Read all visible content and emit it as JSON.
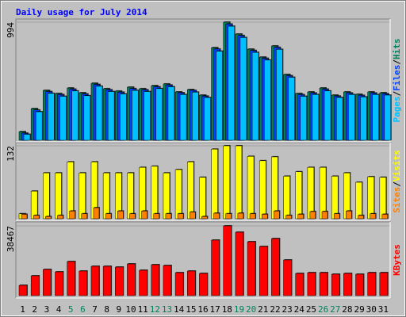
{
  "title": "Daily usage for July 2014",
  "separator": "/",
  "chart_data": [
    {
      "type": "bar",
      "ylim": [
        0,
        994
      ],
      "yticks": [
        994
      ],
      "series": [
        {
          "name": "Pages",
          "color": "#00C0FF",
          "values": [
            50,
            240,
            395,
            370,
            415,
            375,
            455,
            410,
            390,
            420,
            410,
            435,
            450,
            385,
            405,
            360,
            750,
            960,
            865,
            740,
            675,
            765,
            530,
            370,
            385,
            415,
            360,
            385,
            365,
            385,
            380
          ]
        },
        {
          "name": "Files",
          "color": "#0040FF",
          "values": [
            60,
            255,
            410,
            385,
            430,
            390,
            470,
            425,
            405,
            435,
            425,
            450,
            465,
            400,
            420,
            372,
            768,
            978,
            882,
            756,
            690,
            782,
            544,
            384,
            398,
            430,
            372,
            398,
            378,
            398,
            392
          ]
        },
        {
          "name": "Hits",
          "color": "#00805C",
          "values": [
            73,
            267,
            420,
            394,
            440,
            400,
            480,
            434,
            414,
            447,
            434,
            460,
            474,
            407,
            427,
            380,
            780,
            994,
            894,
            767,
            700,
            794,
            554,
            394,
            407,
            440,
            380,
            407,
            387,
            407,
            400
          ]
        }
      ]
    },
    {
      "type": "bar",
      "ylim": [
        0,
        132
      ],
      "yticks": [
        132
      ],
      "series": [
        {
          "name": "Sites",
          "color": "#FF8000",
          "values": [
            8,
            6,
            4,
            6,
            14,
            9,
            20,
            9,
            14,
            9,
            14,
            9,
            9,
            9,
            12,
            4,
            10,
            9,
            10,
            9,
            8,
            14,
            6,
            8,
            13,
            13,
            9,
            14,
            6,
            9,
            8
          ]
        },
        {
          "name": "Visits",
          "color": "#FFFF00",
          "values": [
            9,
            50,
            83,
            83,
            103,
            83,
            103,
            83,
            83,
            83,
            93,
            95,
            83,
            89,
            103,
            75,
            126,
            132,
            132,
            113,
            105,
            112,
            77,
            85,
            93,
            93,
            77,
            83,
            66,
            76,
            75
          ]
        }
      ]
    },
    {
      "type": "bar",
      "ylim": [
        0,
        38467
      ],
      "yticks": [
        38467
      ],
      "categories": [
        "1",
        "2",
        "3",
        "4",
        "5",
        "6",
        "7",
        "8",
        "9",
        "10",
        "11",
        "12",
        "13",
        "14",
        "15",
        "16",
        "17",
        "18",
        "19",
        "20",
        "21",
        "22",
        "23",
        "24",
        "25",
        "26",
        "27",
        "28",
        "29",
        "30",
        "31"
      ],
      "category_colors": [
        "#000000",
        "#000000",
        "#000000",
        "#000000",
        "#00805C",
        "#00805C",
        "#000000",
        "#000000",
        "#000000",
        "#000000",
        "#000000",
        "#00805C",
        "#00805C",
        "#000000",
        "#000000",
        "#000000",
        "#000000",
        "#000000",
        "#00805C",
        "#00805C",
        "#000000",
        "#000000",
        "#000000",
        "#000000",
        "#000000",
        "#00805C",
        "#00805C",
        "#000000",
        "#000000",
        "#000000",
        "#000000"
      ],
      "series": [
        {
          "name": "KBytes",
          "color": "#FF0000",
          "values": [
            5683,
            10928,
            14425,
            13114,
            18797,
            13551,
            16174,
            16174,
            15737,
            17485,
            13988,
            17048,
            16611,
            12677,
            13551,
            12240,
            30599,
            38467,
            34970,
            29725,
            27102,
            31473,
            19671,
            12240,
            12677,
            12677,
            11803,
            12240,
            11803,
            12677,
            12677
          ]
        }
      ]
    }
  ]
}
